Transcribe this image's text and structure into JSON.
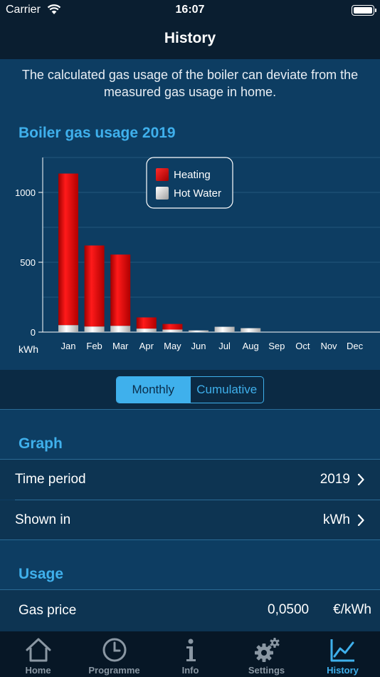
{
  "status_bar": {
    "carrier": "Carrier",
    "time": "16:07"
  },
  "nav": {
    "title": "History"
  },
  "notice": "The calculated gas usage of the boiler can deviate from the measured gas usage in home.",
  "chart_title": "Boiler gas usage 2019",
  "chart_data": {
    "type": "bar",
    "stacked": true,
    "title": "Boiler gas usage 2019",
    "categories": [
      "Jan",
      "Feb",
      "Mar",
      "Apr",
      "May",
      "Jun",
      "Jul",
      "Aug",
      "Sep",
      "Oct",
      "Nov",
      "Dec"
    ],
    "series": [
      {
        "name": "Hot Water",
        "color": "#e6e6e6",
        "values": [
          50,
          40,
          45,
          25,
          18,
          12,
          38,
          28,
          0,
          0,
          0,
          0
        ]
      },
      {
        "name": "Heating",
        "color": "#e00000",
        "values": [
          1085,
          580,
          510,
          80,
          40,
          0,
          0,
          0,
          0,
          0,
          0,
          0
        ]
      }
    ],
    "ylabel": "kWh",
    "yticks": [
      0,
      500,
      1000
    ],
    "ylim": [
      0,
      1250
    ],
    "grid": true,
    "legend_position": "top-center"
  },
  "segmented": {
    "monthly": "Monthly",
    "cumulative": "Cumulative",
    "selected": "Monthly"
  },
  "graph_section": {
    "header": "Graph",
    "rows": [
      {
        "label": "Time period",
        "value": "2019"
      },
      {
        "label": "Shown in",
        "value": "kWh"
      }
    ]
  },
  "usage_section": {
    "header": "Usage",
    "gas_price_label": "Gas price",
    "gas_price_value": "0,0500",
    "gas_price_unit": "€/kWh"
  },
  "tabs": [
    {
      "label": "Home",
      "icon": "home-icon"
    },
    {
      "label": "Programme",
      "icon": "clock-icon"
    },
    {
      "label": "Info",
      "icon": "info-icon"
    },
    {
      "label": "Settings",
      "icon": "gear-icon"
    },
    {
      "label": "History",
      "icon": "chart-icon",
      "active": true
    }
  ]
}
